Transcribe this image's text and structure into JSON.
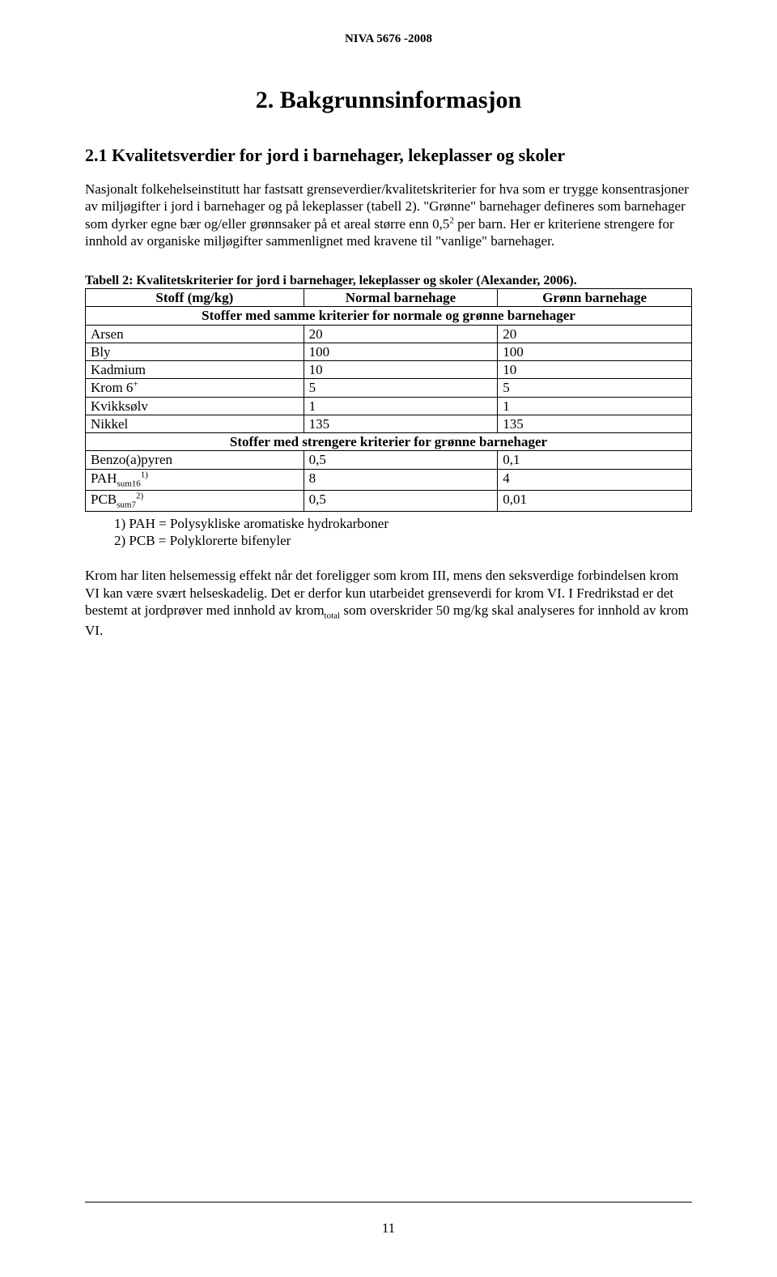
{
  "header": {
    "doc_id": "NIVA 5676 -2008"
  },
  "section": {
    "title": "2. Bakgrunnsinformasjon",
    "subtitle": "2.1 Kvalitetsverdier for jord i barnehager, lekeplasser og skoler",
    "paragraph1": "Nasjonalt folkehelseinstitutt har fastsatt grenseverdier/kvalitetskriterier for hva som er trygge konsentrasjoner av miljøgifter i jord i barnehager og på lekeplasser (tabell 2). \"Grønne\" barnehager defineres som barnehager som dyrker egne bær og/eller grønnsaker på et areal større enn 0,5",
    "paragraph1_supnote": "2",
    "paragraph1_tail": " per barn. Her er kriteriene strengere for innhold av organiske miljøgifter sammenlignet med kravene til \"vanlige\" barnehager."
  },
  "table": {
    "caption": "Tabell 2: Kvalitetskriterier for jord i barnehager, lekeplasser og skoler (Alexander, 2006).",
    "col_stoff": "Stoff (mg/kg)",
    "col_normal": "Normal barnehage",
    "col_gronn": "Grønn barnehage",
    "subheader1": "Stoffer med samme kriterier for normale og grønne barnehager",
    "subheader2": "Stoffer med strengere kriterier for grønne barnehager",
    "rows_a": [
      {
        "stoff_html": "Arsen",
        "normal": "20",
        "gronn": "20"
      },
      {
        "stoff_html": "Bly",
        "normal": "100",
        "gronn": "100"
      },
      {
        "stoff_html": "Kadmium",
        "normal": "10",
        "gronn": "10"
      },
      {
        "stoff_html": "Krom 6<span class=\"sup\">+</span>",
        "normal": "5",
        "gronn": "5"
      },
      {
        "stoff_html": "Kvikksølv",
        "normal": "1",
        "gronn": "1"
      },
      {
        "stoff_html": "Nikkel",
        "normal": "135",
        "gronn": "135"
      }
    ],
    "rows_b": [
      {
        "stoff_html": "Benzo(a)pyren",
        "normal": "0,5",
        "gronn": "0,1"
      },
      {
        "stoff_html": "PAH<span class=\"sub\">sum16</span><span class=\"sup\">1)</span>",
        "normal": "8",
        "gronn": "4"
      },
      {
        "stoff_html": "PCB<span class=\"sub\">sum7</span><span class=\"sup\">2)</span>",
        "normal": "0,5",
        "gronn": "0,01"
      }
    ]
  },
  "footnotes": {
    "f1": "1)   PAH = Polysykliske aromatiske hydrokarboner",
    "f2": "2)   PCB = Polyklorerte bifenyler"
  },
  "paragraph2_html": "Krom har liten helsemessig effekt når det foreligger som krom III, mens den seksverdige forbindelsen krom VI kan være svært helseskadelig. Det er derfor kun utarbeidet grenseverdi for krom VI. I Fredrikstad er det bestemt at jordprøver med innhold av krom<span class=\"sub\">total</span> som overskrider 50 mg/kg skal analyseres for innhold av krom VI.",
  "footer": {
    "page_number": "11"
  }
}
